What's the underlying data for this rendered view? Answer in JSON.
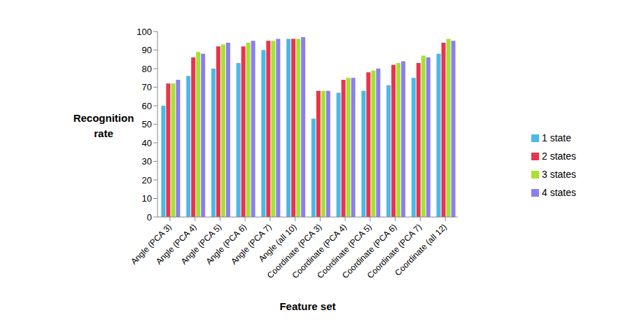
{
  "chart_data": {
    "type": "bar",
    "x_label": "Feature set",
    "y_label": "Recognition rate",
    "categories": [
      "Angle (PCA 3)",
      "Angle (PCA 4)",
      "Angle (PCA 5)",
      "Angle (PCA 6)",
      "Angle (PCA 7)",
      "Angle (all 10)",
      "Coordinate (PCA 3)",
      "Coordinate (PCA 4)",
      "Coordinate (PCA 5)",
      "Coordinate (PCA 6)",
      "Coordinate (PCA 7)",
      "Coordinate (all 12)"
    ],
    "series": [
      {
        "name": "1 state",
        "color": "#4db8e8",
        "values": [
          60,
          76,
          80,
          83,
          90,
          96,
          53,
          67,
          68,
          71,
          75,
          88
        ]
      },
      {
        "name": "2 states",
        "color": "#e8344e",
        "values": [
          72,
          86,
          92,
          92,
          95,
          96,
          68,
          74,
          78,
          82,
          83,
          94
        ]
      },
      {
        "name": "3 states",
        "color": "#a6e22e",
        "values": [
          72,
          89,
          93,
          94,
          95,
          96,
          68,
          75,
          79,
          83,
          87,
          96
        ]
      },
      {
        "name": "4 states",
        "color": "#8b7ff0",
        "values": [
          74,
          88,
          94,
          95,
          96,
          97,
          68,
          75,
          80,
          84,
          86,
          95
        ]
      }
    ],
    "ylim": [
      0,
      100
    ],
    "yticks": [
      0,
      10,
      20,
      30,
      40,
      50,
      60,
      70,
      80,
      90,
      100
    ],
    "grid": false,
    "legend": "right"
  }
}
